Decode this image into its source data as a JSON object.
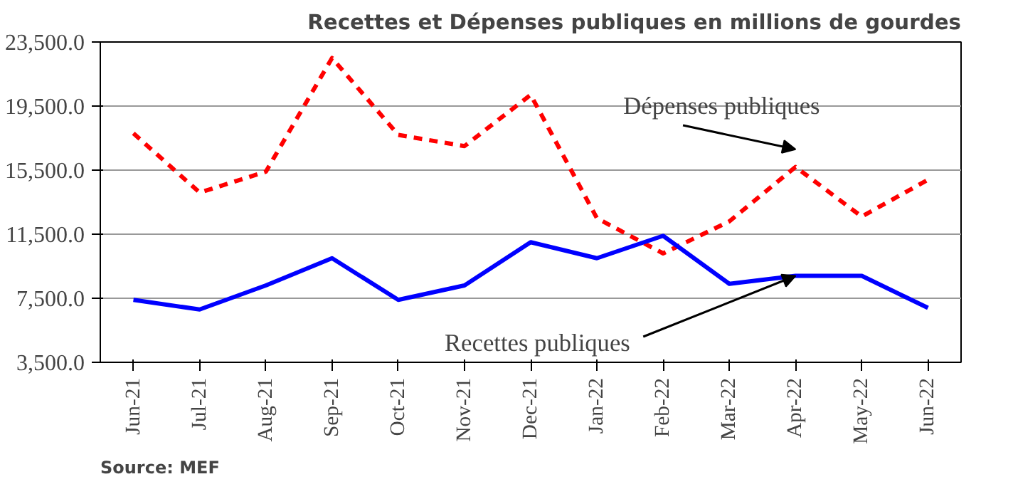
{
  "chart_data": {
    "type": "line",
    "title": "Recettes et Dépenses publiques en millions de gourdes",
    "categories": [
      "Jun-21",
      "Jul-21",
      "Aug-21",
      "Sep-21",
      "Oct-21",
      "Nov-21",
      "Dec-21",
      "Jan-22",
      "Feb-22",
      "Mar-22",
      "Apr-22",
      "May-22",
      "Jun-22"
    ],
    "series": [
      {
        "color": "#ff0000",
        "line_style": "dashed",
        "values": [
          17800,
          14100,
          15400,
          22500,
          17700,
          17000,
          20200,
          12500,
          10300,
          12300,
          15700,
          12600,
          14900
        ]
      },
      {
        "color": "#0000ff",
        "line_style": "solid",
        "values": [
          7400,
          6800,
          8300,
          10000,
          7400,
          8300,
          11000,
          10000,
          11400,
          8400,
          8900,
          8900,
          6900
        ]
      }
    ],
    "ylim": [
      3500,
      23500
    ],
    "yticks": [
      {
        "value": 3500,
        "label": "3,500.0"
      },
      {
        "value": 7500,
        "label": "7,500.0"
      },
      {
        "value": 11500,
        "label": "11,500.0"
      },
      {
        "value": 15500,
        "label": "15,500.0"
      },
      {
        "value": 19500,
        "label": "19,500.0"
      },
      {
        "value": 23500,
        "label": "23,500.0"
      }
    ],
    "grid": "y",
    "marker": "none",
    "annotations": [
      "Dépenses publiques",
      {
        "text": "Recettes publiques",
        "x": "Apr-22",
        "y": 8900
      },
      "Source: MEF"
    ]
  }
}
